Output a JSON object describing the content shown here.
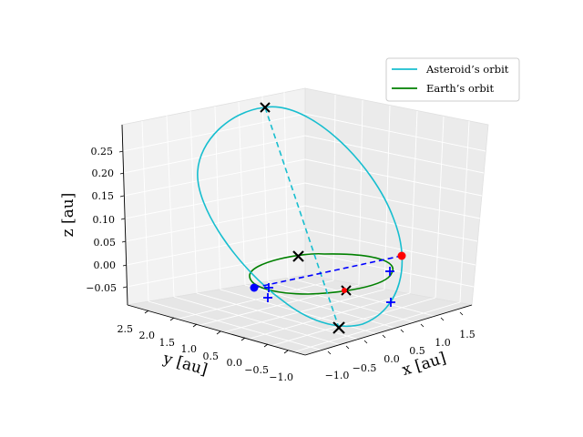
{
  "chart_data": {
    "type": "line3d",
    "title": "",
    "axes": {
      "x": {
        "label": "x [au]",
        "ticks": [
          -1.0,
          -0.5,
          0.0,
          0.5,
          1.0,
          1.5
        ],
        "tick_labels": [
          "−1.0",
          "−0.5",
          "0.0",
          "0.5",
          "1.0",
          "1.5"
        ]
      },
      "y": {
        "label": "y [au]",
        "ticks": [
          -1.0,
          -0.5,
          0.0,
          0.5,
          1.0,
          1.5,
          2.0,
          2.5
        ],
        "tick_labels": [
          "−1.0",
          "−0.5",
          "0.0",
          "0.5",
          "1.0",
          "1.5",
          "2.0",
          "2.5"
        ]
      },
      "z": {
        "label": "z [au]",
        "ticks": [
          -0.05,
          0.0,
          0.05,
          0.1,
          0.15,
          0.2,
          0.25
        ],
        "tick_labels": [
          "−0.05",
          "0.00",
          "0.05",
          "0.10",
          "0.15",
          "0.20",
          "0.25"
        ]
      }
    },
    "grid": true,
    "legend": {
      "placement": "top-right",
      "entries": [
        {
          "name": "Asteroid’s orbit",
          "color": "#17becf"
        },
        {
          "name": "Earth’s orbit",
          "color": "#008000"
        }
      ]
    },
    "series": [
      {
        "name": "Asteroid’s orbit",
        "color": "#17becf",
        "style": "solid"
      },
      {
        "name": "Earth’s orbit",
        "color": "#008000",
        "style": "solid"
      }
    ],
    "markers": [
      {
        "kind": "x",
        "color": "#000000",
        "desc": "asteroid orbit top"
      },
      {
        "kind": "x",
        "color": "#000000",
        "desc": "asteroid orbit bottom"
      },
      {
        "kind": "x",
        "color": "#000000",
        "desc": "centre"
      },
      {
        "kind": "x",
        "color": "#000000",
        "desc": "near red"
      },
      {
        "kind": "dot",
        "color": "#ff0000"
      },
      {
        "kind": "dot",
        "color": "#0000ff"
      },
      {
        "kind": "plus",
        "color": "#0000ff"
      },
      {
        "kind": "plus",
        "color": "#0000ff"
      },
      {
        "kind": "plus",
        "color": "#0000ff"
      },
      {
        "kind": "plus",
        "color": "#0000ff"
      }
    ],
    "dashed_lines": [
      {
        "color": "#17becf",
        "desc": "asteroid apsides line"
      },
      {
        "color": "#0000ff",
        "desc": "earth line of nodes"
      }
    ]
  }
}
